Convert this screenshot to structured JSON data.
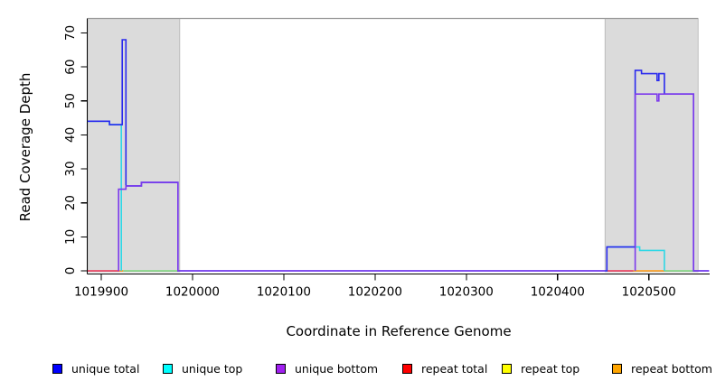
{
  "chart_data": {
    "type": "line",
    "title": "",
    "xlabel": "Coordinate in Reference Genome",
    "ylabel": "Read Coverage Depth",
    "xlim": [
      1019885,
      1020566
    ],
    "ylim": [
      0,
      74
    ],
    "grid": false,
    "x_ticks": [
      1019900,
      1020000,
      1020100,
      1020200,
      1020300,
      1020400,
      1020500
    ],
    "y_ticks": [
      0,
      10,
      20,
      30,
      40,
      50,
      60,
      70
    ],
    "shaded_regions": [
      {
        "name": "repeat-region-left",
        "x0": 1019885,
        "x1": 1019986
      },
      {
        "name": "repeat-region-right",
        "x0": 1020452,
        "x1": 1020554
      }
    ],
    "series": [
      {
        "name": "repeat top",
        "line_color": "#7cd87c",
        "segments": [
          [
            [
              1019924,
              0
            ],
            [
              1019984,
              0
            ]
          ],
          [
            [
              1020517,
              0
            ],
            [
              1020549,
              0
            ]
          ]
        ]
      },
      {
        "name": "repeat total",
        "line_color": "#ee3355",
        "segments": [
          [
            [
              1019885,
              0
            ],
            [
              1019920,
              0
            ]
          ],
          [
            [
              1020454,
              0
            ],
            [
              1020483,
              0
            ]
          ]
        ]
      },
      {
        "name": "repeat bottom",
        "line_color": "#ff9912",
        "segments": [
          [
            [
              1019920,
              0
            ],
            [
              1019924,
              0
            ]
          ],
          [
            [
              1020483,
              0
            ],
            [
              1020517,
              0
            ]
          ]
        ]
      },
      {
        "name": "unique top",
        "line_color": "#2ed8e6",
        "segments": [
          [
            [
              1019885,
              44
            ],
            [
              1019909,
              44
            ],
            [
              1019909,
              43
            ],
            [
              1019922,
              43
            ],
            [
              1019922,
              0
            ]
          ],
          [
            [
              1020454,
              7
            ],
            [
              1020490,
              7
            ],
            [
              1020490,
              6
            ],
            [
              1020517,
              6
            ],
            [
              1020517,
              0
            ]
          ]
        ]
      },
      {
        "name": "unique total",
        "line_color": "#2a2aee",
        "segments": [
          [
            [
              1019885,
              44
            ],
            [
              1019909,
              44
            ],
            [
              1019909,
              43
            ],
            [
              1019923,
              43
            ],
            [
              1019923,
              68
            ],
            [
              1019927,
              68
            ],
            [
              1019927,
              25
            ],
            [
              1019944,
              25
            ],
            [
              1019944,
              26
            ],
            [
              1019984,
              26
            ],
            [
              1019984,
              0
            ],
            [
              1020454,
              0
            ],
            [
              1020454,
              7
            ],
            [
              1020485,
              7
            ],
            [
              1020485,
              59
            ],
            [
              1020492,
              59
            ],
            [
              1020492,
              58
            ],
            [
              1020509,
              58
            ],
            [
              1020509,
              56
            ],
            [
              1020511,
              56
            ],
            [
              1020511,
              58
            ],
            [
              1020517,
              58
            ],
            [
              1020517,
              52
            ],
            [
              1020549,
              52
            ],
            [
              1020549,
              0
            ],
            [
              1020566,
              0
            ]
          ]
        ]
      },
      {
        "name": "unique bottom",
        "line_color": "#7c3aec",
        "segments": [
          [
            [
              1019919,
              0
            ],
            [
              1019919,
              24
            ],
            [
              1019927,
              24
            ],
            [
              1019927,
              25
            ],
            [
              1019944,
              25
            ],
            [
              1019944,
              26
            ],
            [
              1019984,
              26
            ],
            [
              1019984,
              0
            ],
            [
              1020452,
              0
            ]
          ],
          [
            [
              1020485,
              0
            ],
            [
              1020485,
              52
            ],
            [
              1020509,
              52
            ],
            [
              1020509,
              50
            ],
            [
              1020511,
              50
            ],
            [
              1020511,
              52
            ],
            [
              1020549,
              52
            ],
            [
              1020549,
              0
            ],
            [
              1020566,
              0
            ]
          ]
        ]
      }
    ]
  },
  "legend": {
    "items": [
      {
        "label": "unique total",
        "swatch_color": "#0000ff"
      },
      {
        "label": "unique top",
        "swatch_color": "#00ffff"
      },
      {
        "label": "unique bottom",
        "swatch_color": "#a020f0"
      },
      {
        "label": "repeat total",
        "swatch_color": "#ff0000"
      },
      {
        "label": "repeat top",
        "swatch_color": "#ffff00"
      },
      {
        "label": "repeat bottom",
        "swatch_color": "#ffa500"
      }
    ]
  }
}
